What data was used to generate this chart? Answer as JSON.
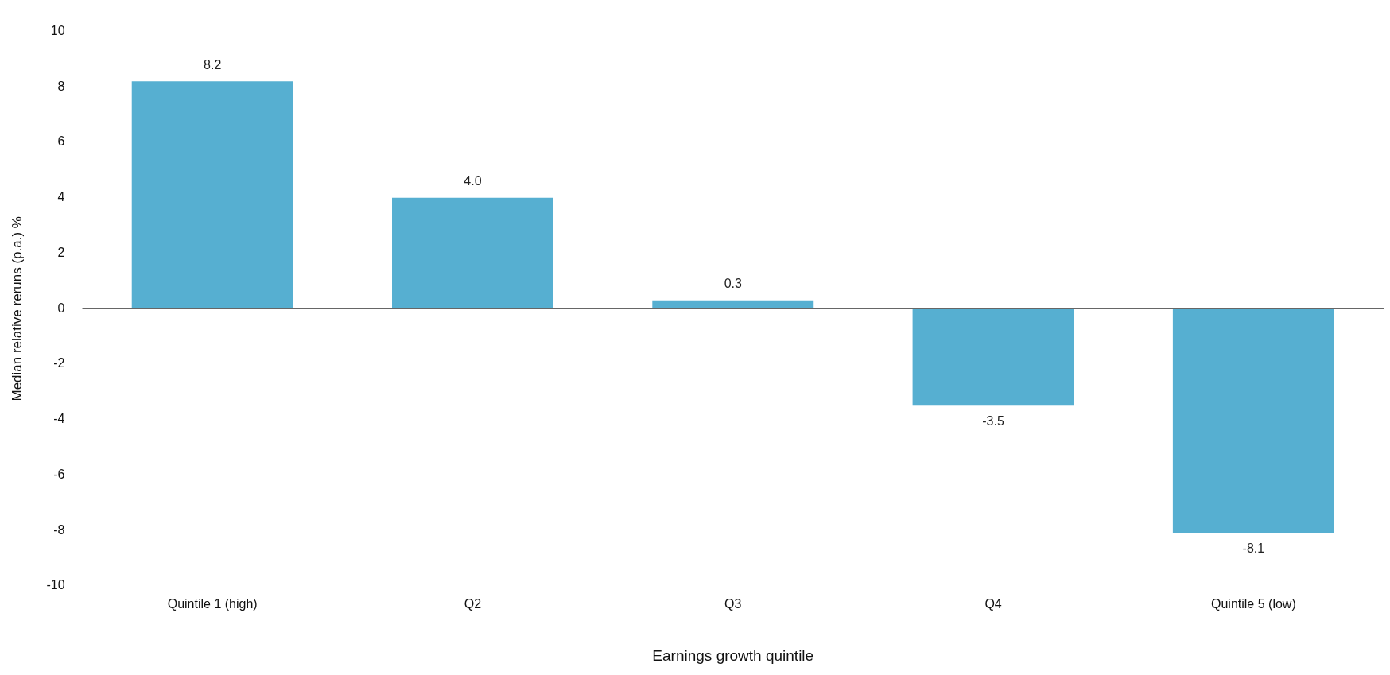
{
  "chart_data": {
    "type": "bar",
    "xlabel": "Earnings growth quintile",
    "ylabel": "Median relative reruns (p.a.) %",
    "categories": [
      "Quintile 1 (high)",
      "Q2",
      "Q3",
      "Q4",
      "Quintile 5 (low)"
    ],
    "values": [
      8.2,
      4.0,
      0.3,
      -3.5,
      -8.1
    ],
    "color": "#56afd1",
    "value_labels": [
      "8.2",
      "4.0",
      "0.3",
      "-3.5",
      "-8.1"
    ],
    "ylim": [
      -10,
      10
    ],
    "yticks": [
      -10,
      -8,
      -6,
      -4,
      -2,
      0,
      2,
      4,
      6,
      8,
      10
    ],
    "ref_lines": [
      {
        "axis": "y",
        "value": 0,
        "color": "#666666"
      }
    ],
    "grid": false,
    "legend": false
  }
}
